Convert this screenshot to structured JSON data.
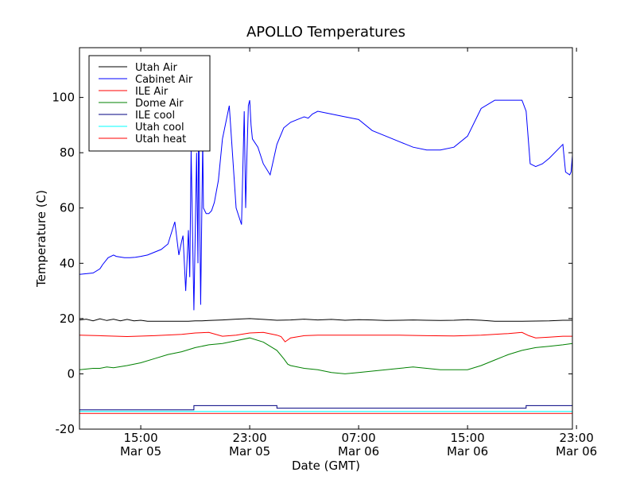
{
  "chart_data": {
    "type": "line",
    "title": "APOLLO Temperatures",
    "xlabel": "Date (GMT)",
    "ylabel": "Temperature (C)",
    "xlim": [
      10.5,
      46.7
    ],
    "ylim": [
      -20,
      118
    ],
    "grid": false,
    "legend_position": "top-left",
    "x_unit": "hours since 00:00 Mar 05 (GMT)",
    "yticks": [
      {
        "value": -20,
        "label": "-20"
      },
      {
        "value": 0,
        "label": "0"
      },
      {
        "value": 20,
        "label": "20"
      },
      {
        "value": 40,
        "label": "40"
      },
      {
        "value": 60,
        "label": "60"
      },
      {
        "value": 80,
        "label": "80"
      },
      {
        "value": 100,
        "label": "100"
      }
    ],
    "xticks": [
      {
        "value": 15,
        "time": "15:00",
        "date": "Mar 05"
      },
      {
        "value": 23,
        "time": "23:00",
        "date": "Mar 05"
      },
      {
        "value": 31,
        "time": "07:00",
        "date": "Mar 06"
      },
      {
        "value": 39,
        "time": "15:00",
        "date": "Mar 06"
      },
      {
        "value": 47,
        "time": "23:00",
        "date": "Mar 06"
      }
    ],
    "series": [
      {
        "name": "Utah Air",
        "color": "#000000",
        "x": [
          10.5,
          11,
          11.5,
          12,
          12.5,
          13,
          13.5,
          14,
          14.5,
          15,
          15.5,
          16,
          16.5,
          17,
          17.5,
          18,
          18.5,
          19,
          19.5,
          20,
          21,
          22,
          23,
          24,
          25,
          26,
          27,
          28,
          29,
          30,
          31,
          32,
          33,
          34,
          35,
          36,
          37,
          38,
          39,
          40,
          41,
          42,
          43,
          44,
          45,
          46,
          46.7
        ],
        "y": [
          19.5,
          19.8,
          19.2,
          19.9,
          19.3,
          19.8,
          19.2,
          19.7,
          19.2,
          19.4,
          19,
          19,
          19,
          19,
          19,
          19,
          19,
          19.2,
          19.2,
          19.3,
          19.5,
          19.8,
          20,
          19.7,
          19.4,
          19.5,
          19.8,
          19.5,
          19.7,
          19.4,
          19.6,
          19.5,
          19.3,
          19.4,
          19.5,
          19.4,
          19.3,
          19.4,
          19.6,
          19.4,
          19,
          19,
          19,
          19.1,
          19.2,
          19.4,
          19.4
        ]
      },
      {
        "name": "Cabinet Air",
        "color": "#0000ff",
        "x": [
          10.5,
          11.5,
          12,
          12.2,
          12.6,
          13,
          13.2,
          13.8,
          14.2,
          14.6,
          15,
          15.5,
          16,
          16.5,
          17,
          17.5,
          17.8,
          18,
          18.1,
          18.3,
          18.5,
          18.6,
          18.7,
          18.9,
          19.1,
          19.2,
          19.25,
          19.4,
          19.55,
          19.6,
          19.8,
          20,
          20.2,
          20.4,
          20.7,
          21,
          21.5,
          22,
          22.4,
          22.6,
          22.7,
          22.8,
          22.9,
          23,
          23.1,
          23.2,
          23.6,
          24,
          24.5,
          25,
          25.5,
          26,
          26.5,
          27,
          27.3,
          27.6,
          28,
          29,
          30,
          31,
          32,
          33,
          34,
          35,
          36,
          37,
          38,
          39,
          40,
          41,
          42,
          43,
          43.3,
          43.6,
          44,
          44.5,
          45,
          46,
          46.2,
          46.5,
          46.6,
          46.7
        ],
        "y": [
          36,
          36.5,
          38,
          39.5,
          42,
          43,
          42.5,
          42,
          42,
          42.2,
          42.5,
          43,
          44,
          45,
          47,
          55,
          43,
          48,
          50,
          30,
          52,
          35,
          81,
          23,
          80,
          40,
          95,
          25,
          85,
          60,
          58,
          58,
          59,
          62,
          70,
          85,
          97,
          60,
          54,
          95,
          60,
          80,
          97,
          99,
          90,
          85,
          82,
          76,
          72,
          83,
          89,
          91,
          92,
          93,
          92.5,
          94,
          95,
          94,
          93,
          92,
          88,
          86,
          84,
          82,
          81,
          81,
          82,
          86,
          96,
          99,
          99,
          99,
          95,
          76,
          75,
          76,
          78,
          83,
          73,
          72,
          73,
          79
        ]
      },
      {
        "name": "ILE Air",
        "color": "#ff0000",
        "x": [
          10.5,
          12,
          14,
          16,
          18,
          19,
          20,
          21,
          22,
          23,
          24,
          24.5,
          25,
          25.3,
          25.6,
          26,
          27,
          28,
          30,
          32,
          34,
          36,
          38,
          40,
          42,
          43,
          43.5,
          44,
          45,
          46,
          46.7
        ],
        "y": [
          14,
          13.8,
          13.5,
          13.8,
          14.3,
          14.8,
          15,
          13.6,
          14,
          14.8,
          15,
          14.5,
          14,
          13.5,
          11.6,
          13,
          13.8,
          14,
          14,
          14,
          14,
          13.8,
          13.7,
          14,
          14.6,
          15,
          13.8,
          13,
          13.3,
          13.6,
          13.6
        ]
      },
      {
        "name": "Dome Air",
        "color": "#008000",
        "x": [
          10.5,
          11.5,
          12,
          12.5,
          13,
          14,
          15,
          16,
          17,
          18,
          19,
          20,
          21,
          22,
          23,
          24,
          25,
          25.5,
          25.8,
          26,
          27,
          28,
          29,
          30,
          31,
          32,
          33,
          34,
          35,
          36,
          37,
          38,
          39,
          40,
          41,
          42,
          43,
          44,
          45,
          46,
          46.7
        ],
        "y": [
          1.5,
          2,
          2,
          2.5,
          2.2,
          3,
          4,
          5.5,
          7,
          8,
          9.5,
          10.5,
          11,
          12,
          13,
          11.5,
          8.5,
          5.5,
          3.5,
          3,
          2,
          1.5,
          0.5,
          0,
          0.5,
          1,
          1.5,
          2,
          2.5,
          2,
          1.5,
          1.5,
          1.5,
          3,
          5,
          7,
          8.5,
          9.5,
          10,
          10.5,
          11
        ]
      },
      {
        "name": "ILE cool",
        "color": "#000080",
        "x": [
          10.5,
          18.9,
          18.9,
          25,
          25,
          43.3,
          43.3,
          46.7
        ],
        "y": [
          -13,
          -13,
          -11.5,
          -11.5,
          -12.4,
          -12.4,
          -11.5,
          -11.5
        ]
      },
      {
        "name": "Utah cool",
        "color": "#00ffff",
        "x": [
          10.5,
          46.7
        ],
        "y": [
          -13.6,
          -13.6
        ]
      },
      {
        "name": "Utah heat",
        "color": "#ff0000",
        "x": [
          10.5,
          46.7
        ],
        "y": [
          -14.3,
          -14.3
        ]
      }
    ]
  }
}
